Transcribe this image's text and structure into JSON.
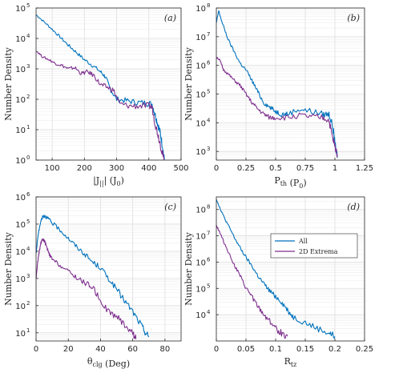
{
  "colors": {
    "all": "#0072BD",
    "extrema": "#7E2F8E",
    "grid": "#dedede",
    "axis": "#262626"
  },
  "legend": {
    "all": "All",
    "extrema": "2D Extrema"
  },
  "chart_data": [
    {
      "panel_label": "(a)",
      "type": "line",
      "scale_y": "log",
      "xlabel": "|J_||| (J_0)",
      "ylabel": "Number Density",
      "xlim": [
        50,
        500
      ],
      "ylim": [
        1,
        100000
      ],
      "xticks": [
        100,
        200,
        300,
        400,
        500
      ],
      "yticks": [
        1,
        10,
        100,
        1000,
        10000,
        100000
      ],
      "series": [
        {
          "name": "All",
          "color": "all",
          "x": [
            50,
            75,
            100,
            125,
            150,
            175,
            200,
            225,
            250,
            265,
            280,
            300,
            330,
            360,
            390,
            410,
            420,
            428,
            435,
            442,
            448
          ],
          "y": [
            60000,
            35000,
            20000,
            11000,
            6000,
            3500,
            2000,
            1300,
            800,
            550,
            220,
            100,
            90,
            80,
            75,
            70,
            30,
            15,
            8,
            3,
            1
          ]
        },
        {
          "name": "2D Extrema",
          "color": "extrema",
          "x": [
            50,
            70,
            90,
            110,
            130,
            150,
            170,
            190,
            210,
            230,
            250,
            270,
            290,
            310,
            340,
            370,
            400,
            410,
            420,
            430,
            440,
            447
          ],
          "y": [
            4000,
            2500,
            2000,
            1500,
            1300,
            1000,
            1100,
            700,
            800,
            600,
            300,
            250,
            200,
            70,
            60,
            60,
            60,
            55,
            15,
            6,
            2,
            1
          ]
        }
      ]
    },
    {
      "panel_label": "(b)",
      "type": "line",
      "scale_y": "log",
      "xlabel": "P_th (P_0)",
      "ylabel": "Number Density",
      "xlim": [
        0,
        1.25
      ],
      "ylim": [
        500,
        100000000
      ],
      "xticks": [
        0,
        0.25,
        0.5,
        0.75,
        1,
        1.25
      ],
      "xtick_labels": [
        "0",
        "0.25",
        "0.5",
        "0.75",
        "1",
        "1.25"
      ],
      "yticks": [
        1000,
        10000,
        100000,
        1000000,
        10000000,
        100000000
      ],
      "series": [
        {
          "name": "All",
          "color": "all",
          "x": [
            0.0,
            0.02,
            0.05,
            0.1,
            0.15,
            0.2,
            0.25,
            0.3,
            0.35,
            0.4,
            0.45,
            0.5,
            0.55,
            0.6,
            0.7,
            0.8,
            0.9,
            0.95,
            0.98,
            1.0,
            1.02
          ],
          "y": [
            30000000,
            80000000,
            30000000,
            8000000,
            3000000,
            1200000,
            700000,
            300000,
            120000,
            50000,
            35000,
            25000,
            20000,
            20000,
            30000,
            25000,
            20000,
            20000,
            8000,
            2000,
            600
          ]
        },
        {
          "name": "2D Extrema",
          "color": "extrema",
          "x": [
            0.0,
            0.03,
            0.06,
            0.1,
            0.15,
            0.2,
            0.25,
            0.3,
            0.35,
            0.4,
            0.45,
            0.5,
            0.6,
            0.7,
            0.8,
            0.9,
            0.95,
            0.98,
            1.0,
            1.02
          ],
          "y": [
            2000000,
            1500000,
            700000,
            500000,
            300000,
            200000,
            100000,
            50000,
            30000,
            20000,
            15000,
            15000,
            15000,
            18000,
            16000,
            15000,
            12000,
            3000,
            1500,
            800
          ]
        }
      ]
    },
    {
      "panel_label": "(c)",
      "type": "line",
      "scale_y": "log",
      "xlabel": "θ_clg (Deg)",
      "ylabel": "Number Density",
      "xlim": [
        0,
        90
      ],
      "ylim": [
        5,
        1000000
      ],
      "xticks": [
        0,
        20,
        40,
        60,
        80
      ],
      "yticks": [
        10,
        100,
        1000,
        10000,
        100000,
        1000000
      ],
      "series": [
        {
          "name": "All",
          "color": "all",
          "x": [
            0,
            1,
            2,
            3,
            4,
            5,
            6,
            8,
            10,
            15,
            20,
            25,
            30,
            35,
            40,
            45,
            50,
            55,
            60,
            65,
            68,
            70
          ],
          "y": [
            8000,
            30000,
            70000,
            130000,
            180000,
            200000,
            190000,
            150000,
            110000,
            60000,
            30000,
            15000,
            8000,
            4000,
            2500,
            1000,
            400,
            150,
            60,
            20,
            10,
            7
          ]
        },
        {
          "name": "2D Extrema",
          "color": "extrema",
          "x": [
            0,
            1,
            2,
            3,
            4,
            5,
            6,
            8,
            10,
            15,
            20,
            25,
            30,
            35,
            40,
            45,
            50,
            55,
            60,
            62
          ],
          "y": [
            1000,
            4000,
            10000,
            20000,
            28000,
            25000,
            18000,
            8000,
            5000,
            3000,
            1800,
            1100,
            700,
            500,
            150,
            60,
            40,
            20,
            10,
            6
          ]
        }
      ]
    },
    {
      "panel_label": "(d)",
      "type": "line",
      "scale_y": "log",
      "xlabel": "R_tz",
      "ylabel": "Number Density",
      "xlim": [
        0,
        0.25
      ],
      "ylim": [
        1000,
        300000000
      ],
      "xticks": [
        0,
        0.05,
        0.1,
        0.15,
        0.2,
        0.25
      ],
      "xtick_labels": [
        "0",
        "0.05",
        "0.1",
        "0.15",
        "0.2",
        "0.25"
      ],
      "yticks": [
        10000,
        100000,
        1000000,
        10000000,
        100000000
      ],
      "series": [
        {
          "name": "All",
          "color": "all",
          "x": [
            0.0,
            0.005,
            0.01,
            0.02,
            0.03,
            0.04,
            0.05,
            0.06,
            0.07,
            0.08,
            0.09,
            0.1,
            0.11,
            0.12,
            0.13,
            0.15,
            0.17,
            0.19,
            0.2
          ],
          "y": [
            250000000,
            130000000,
            70000000,
            25000000,
            9000000,
            3500000,
            1500000,
            700000,
            300000,
            150000,
            80000,
            50000,
            30000,
            15000,
            8000,
            5000,
            3000,
            2000,
            1500
          ]
        },
        {
          "name": "2D Extrema",
          "color": "extrema",
          "x": [
            0.0,
            0.005,
            0.01,
            0.02,
            0.03,
            0.04,
            0.05,
            0.06,
            0.07,
            0.08,
            0.09,
            0.1,
            0.11,
            0.12
          ],
          "y": [
            25000000,
            15000000,
            8000000,
            2500000,
            800000,
            300000,
            100000,
            50000,
            20000,
            10000,
            6000,
            3000,
            2000,
            1500
          ]
        }
      ]
    }
  ]
}
